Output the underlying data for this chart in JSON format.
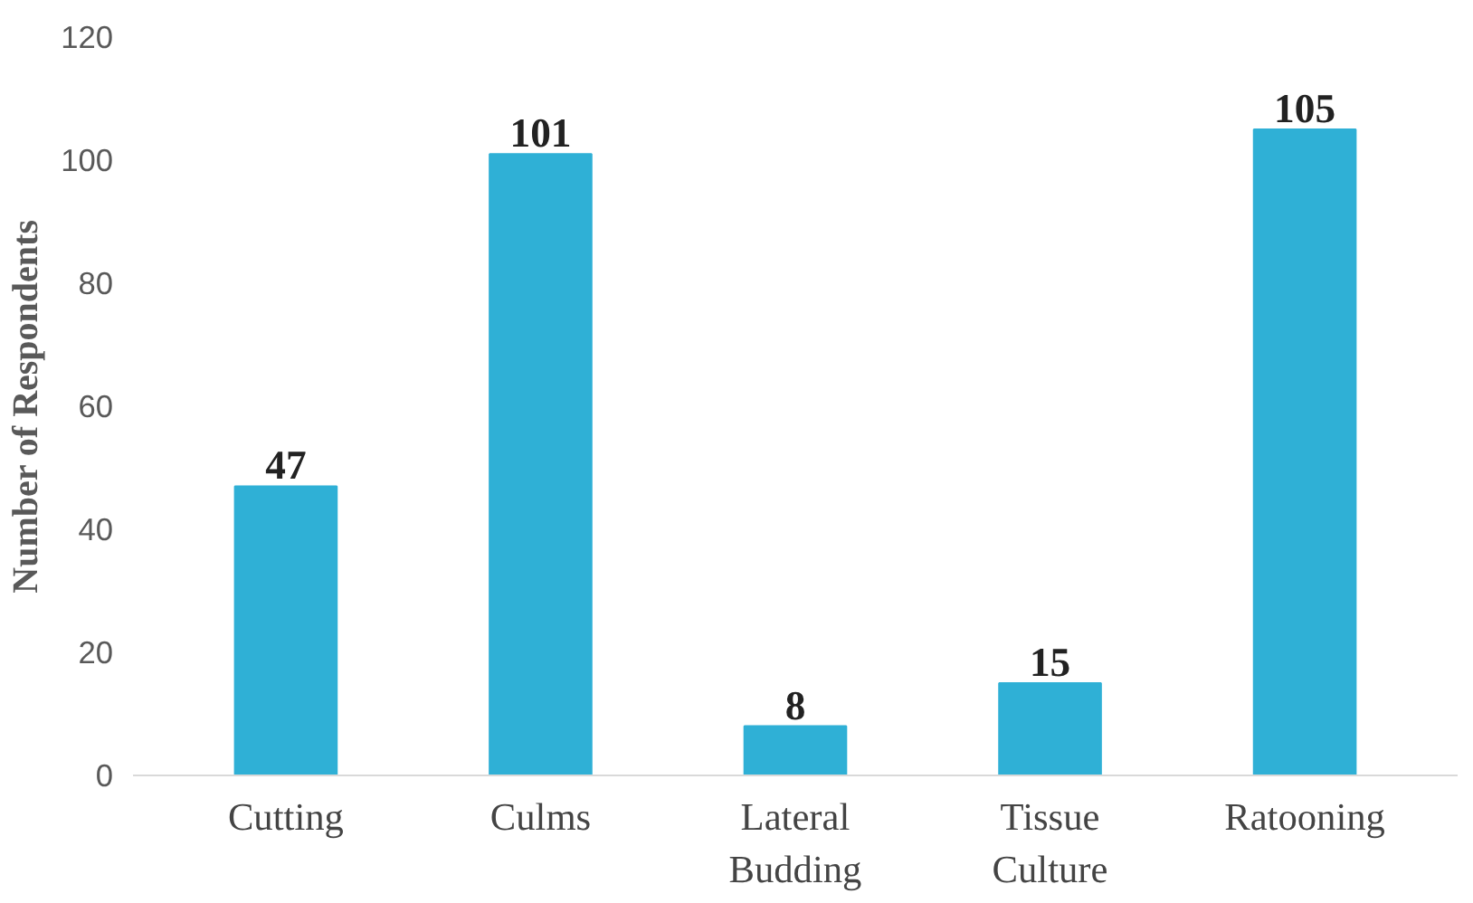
{
  "chart_data": {
    "type": "bar",
    "ylabel": "Number of Respondents",
    "categories": [
      "Cutting",
      "Culms",
      "Lateral Budding",
      "Tissue Culture",
      "Ratooning"
    ],
    "values": [
      47,
      101,
      8,
      15,
      105
    ],
    "color": "#2fb0d6",
    "ylim": [
      0,
      120
    ],
    "yticks": [
      0,
      20,
      40,
      60,
      80,
      100,
      120
    ],
    "grid": false,
    "data_labels": true
  }
}
